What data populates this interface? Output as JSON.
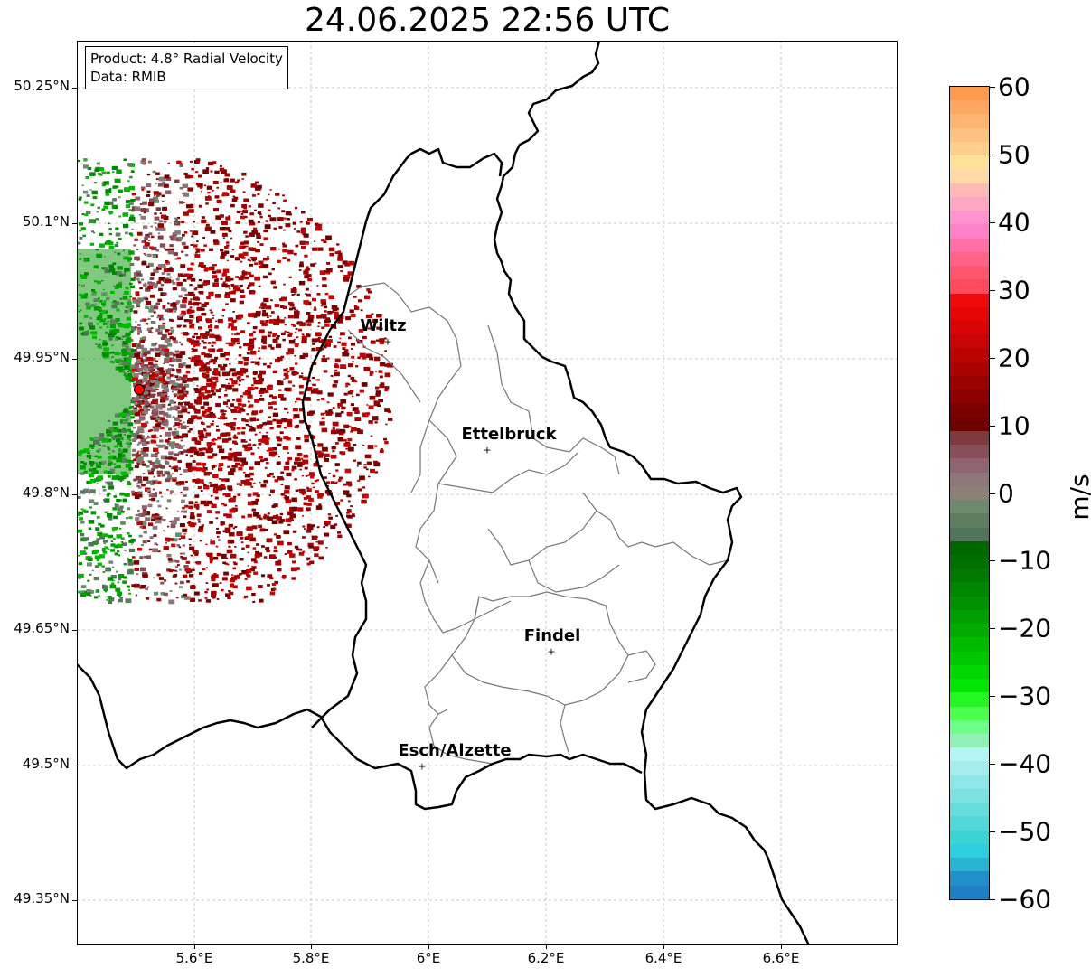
{
  "title": "24.06.2025 22:56 UTC",
  "info_box": {
    "product": "Product: 4.8° Radial Velocity",
    "data": "Data: RMIB"
  },
  "axes": {
    "lat_ticks": [
      "50.25°N",
      "50.1°N",
      "49.95°N",
      "49.8°N",
      "49.65°N",
      "49.5°N",
      "49.35°N"
    ],
    "lon_ticks": [
      "5.6°E",
      "5.8°E",
      "6°E",
      "6.2°E",
      "6.4°E",
      "6.6°E"
    ],
    "grid": true
  },
  "cities": [
    {
      "name": "Wiltz"
    },
    {
      "name": "Ettelbruck"
    },
    {
      "name": "Findel"
    },
    {
      "name": "Esch/Alzette"
    }
  ],
  "radar": {
    "site_marker_color": "#ff0000"
  },
  "colorbar": {
    "label": "m/s",
    "min": -60,
    "max": 60,
    "ticks": [
      "60",
      "50",
      "40",
      "30",
      "20",
      "10",
      "0",
      "−10",
      "−20",
      "−30",
      "−40",
      "−50",
      "−60"
    ],
    "colors_top_to_bottom": [
      "#ff9a52",
      "#ffa761",
      "#ffb571",
      "#ffc181",
      "#ffce8d",
      "#ffe19a",
      "#ffd7a8",
      "#ffb9b8",
      "#ffa8c6",
      "#ff93cf",
      "#ff80c8",
      "#ff6fa7",
      "#ff6386",
      "#ff566f",
      "#ff4a5d",
      "#f20a0a",
      "#e50606",
      "#d70505",
      "#c80404",
      "#b90303",
      "#aa0202",
      "#9b0101",
      "#8c0000",
      "#7c0000",
      "#6e0000",
      "#7e3a3f",
      "#875059",
      "#8d6470",
      "#8f7779",
      "#8b8177",
      "#6d8a6f",
      "#5f7e61",
      "#52745a",
      "#006600",
      "#006e00",
      "#007900",
      "#008600",
      "#009200",
      "#009f00",
      "#00ac00",
      "#00ba00",
      "#00c800",
      "#00d700",
      "#00e600",
      "#22f722",
      "#4dff4d",
      "#6dff87",
      "#91f0b5",
      "#b6f3f3",
      "#a5ecec",
      "#8fe6e6",
      "#7ce1e1",
      "#66dcdc",
      "#52d8d8",
      "#3ed3d3",
      "#2dcfdf",
      "#26b4d0",
      "#2090c8",
      "#1e7fc4"
    ]
  }
}
